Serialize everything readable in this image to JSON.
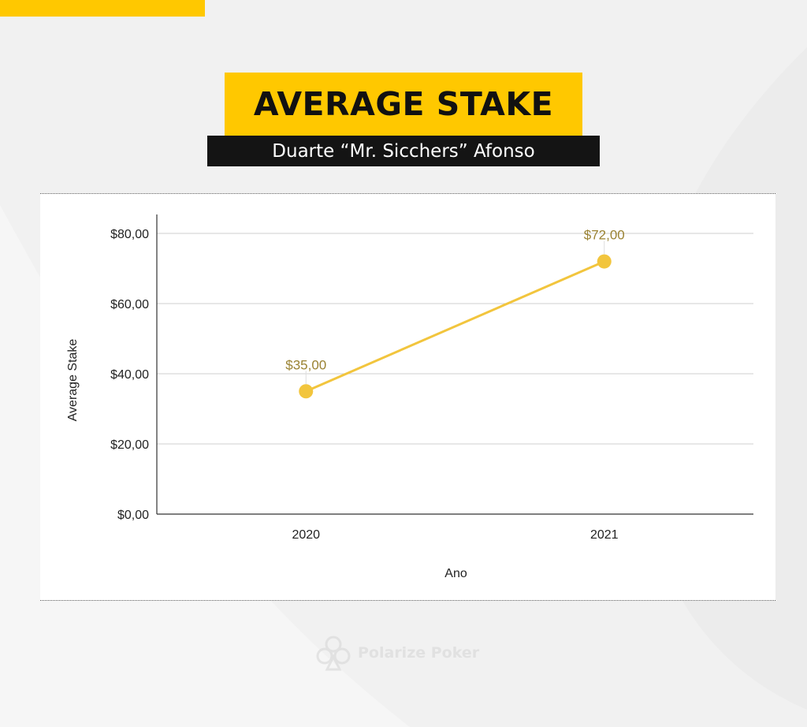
{
  "header": {
    "title": "AVERAGE STAKE",
    "subtitle": "Duarte “Mr. Sicchers” Afonso"
  },
  "watermark": {
    "text": "Polarize Poker",
    "icon": "club-icon"
  },
  "colors": {
    "accent": "#ffc800",
    "series": "#f2c53d",
    "data_label": "#9a8232"
  },
  "chart_data": {
    "type": "line",
    "categories": [
      "2020",
      "2021"
    ],
    "series": [
      {
        "values": [
          35,
          72
        ]
      }
    ],
    "data_labels": [
      "$35,00",
      "$72,00"
    ],
    "xlabel": "Ano",
    "ylabel": "Average Stake",
    "ylim": [
      0,
      80
    ],
    "yticks": [
      0,
      20,
      40,
      60,
      80
    ],
    "ytick_labels": [
      "$0,00",
      "$20,00",
      "$40,00",
      "$60,00",
      "$80,00"
    ],
    "grid": true,
    "legend": false
  }
}
